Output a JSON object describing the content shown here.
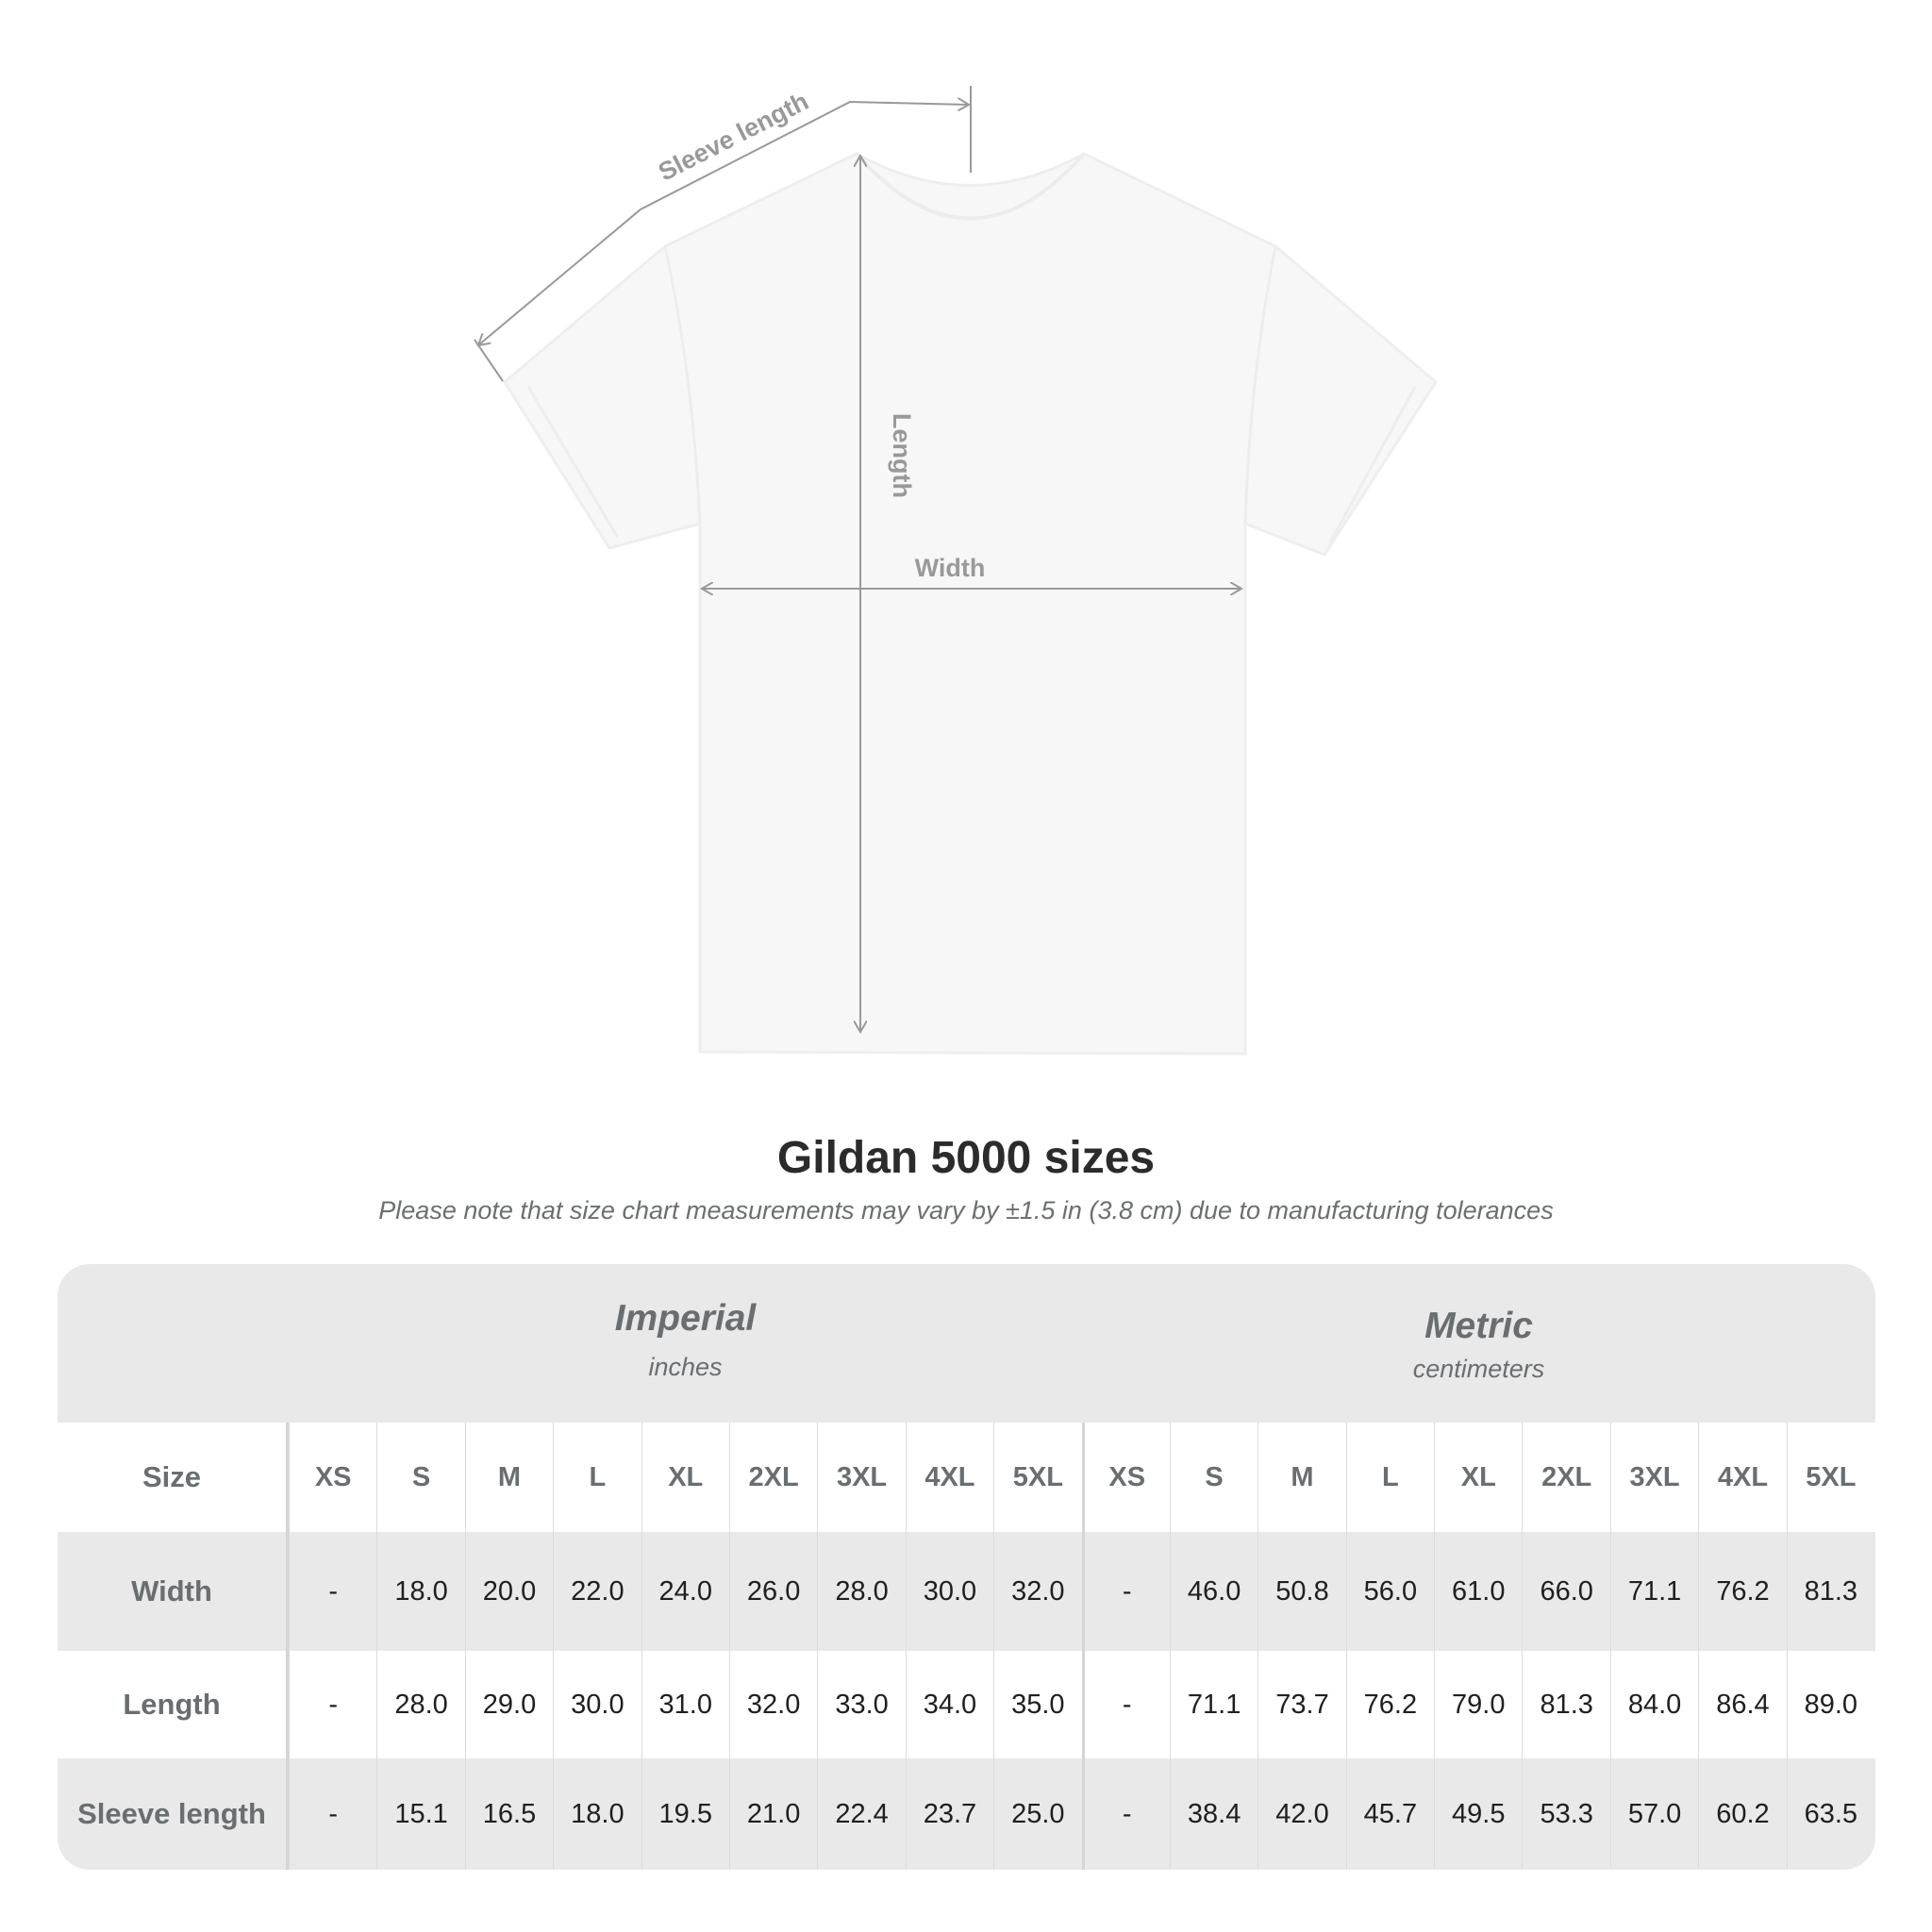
{
  "diagram": {
    "labels": {
      "sleeve_length": "Sleeve length",
      "length": "Length",
      "width": "Width"
    }
  },
  "title": "Gildan 5000 sizes",
  "note": "Please note that size chart measurements may vary by ±1.5 in (3.8 cm) due to manufacturing tolerances",
  "table": {
    "imperial": {
      "heading": "Imperial",
      "unit": "inches"
    },
    "metric": {
      "heading": "Metric",
      "unit": "centimeters"
    },
    "size_label": "Size",
    "sizes": [
      "XS",
      "S",
      "M",
      "L",
      "XL",
      "2XL",
      "3XL",
      "4XL",
      "5XL"
    ],
    "rows": [
      {
        "label": "Width",
        "imperial": [
          "-",
          "18.0",
          "20.0",
          "22.0",
          "24.0",
          "26.0",
          "28.0",
          "30.0",
          "32.0"
        ],
        "metric": [
          "-",
          "46.0",
          "50.8",
          "56.0",
          "61.0",
          "66.0",
          "71.1",
          "76.2",
          "81.3"
        ]
      },
      {
        "label": "Length",
        "imperial": [
          "-",
          "28.0",
          "29.0",
          "30.0",
          "31.0",
          "32.0",
          "33.0",
          "34.0",
          "35.0"
        ],
        "metric": [
          "-",
          "71.1",
          "73.7",
          "76.2",
          "79.0",
          "81.3",
          "84.0",
          "86.4",
          "89.0"
        ]
      },
      {
        "label": "Sleeve length",
        "imperial": [
          "-",
          "15.1",
          "16.5",
          "18.0",
          "19.5",
          "21.0",
          "22.4",
          "23.7",
          "25.0"
        ],
        "metric": [
          "-",
          "38.4",
          "42.0",
          "45.7",
          "49.5",
          "53.3",
          "57.0",
          "60.2",
          "63.5"
        ]
      }
    ]
  }
}
